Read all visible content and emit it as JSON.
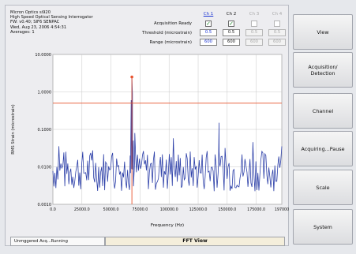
{
  "info": {
    "line1": "Micron Optics si920",
    "line2": "High Speed Optical Sensing Interrogator",
    "line3": "FW: v0.40; SIF6 SENPAC",
    "line4": "Wed, Aug 23, 2006 4:54:31",
    "line5": "Averages: 1"
  },
  "channels": {
    "headers": [
      "Ch 1",
      "Ch 2",
      "Ch 3",
      "Ch 4"
    ],
    "acq_label": "Acquisition Ready",
    "threshold_label": "Threshold (microstrain)",
    "range_label": "Range (microstrain)",
    "acq": [
      "✓",
      "✓",
      "",
      ""
    ],
    "threshold": [
      "0.5",
      "0.5",
      "0.5",
      "0.5"
    ],
    "range": [
      "600",
      "600",
      "600",
      "600"
    ]
  },
  "chart_data": {
    "type": "line",
    "title": "",
    "xlabel": "Frequency (Hz)",
    "ylabel": "RMS Strain (microstrain)",
    "xlim": [
      0,
      197000
    ],
    "ylim_log": [
      0.001,
      10.0
    ],
    "log_scale_y": true,
    "grid": true,
    "x_ticks": [
      "0.0",
      "25000.0",
      "50000.0",
      "75000.0",
      "100000.0",
      "125000.0",
      "150000.0",
      "175000.0",
      "197000"
    ],
    "y_ticks": [
      "0.0010",
      "0.0100",
      "0.1000",
      "1.0000",
      "10.0000"
    ],
    "threshold": 0.5,
    "peak": {
      "x": 68000,
      "y": 2.5
    },
    "colors": {
      "series": "#2c3fa8",
      "threshold": "#e8542f",
      "peak": "#e8542f"
    }
  },
  "status": {
    "left": "Unmggered Acq...Running",
    "view": "FFT View"
  },
  "side_buttons": [
    "View",
    "Acquisition/\nDetection",
    "Channel",
    "Acquiring...Pause",
    "Scale",
    "System"
  ]
}
